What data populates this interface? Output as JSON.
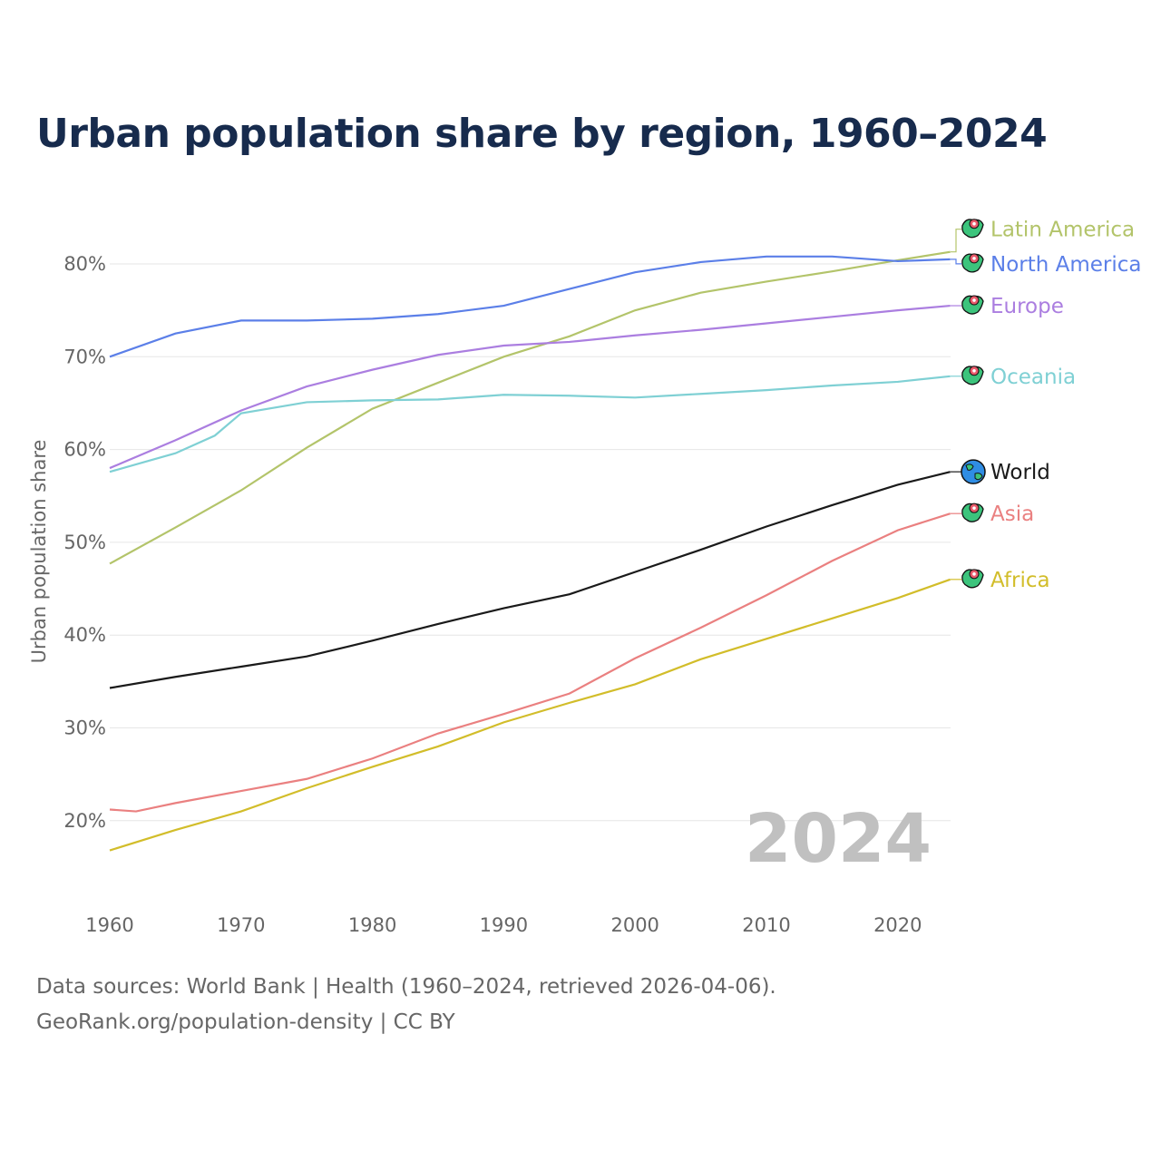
{
  "title": "Urban population share by region, 1960–2024",
  "source_line1": "Data sources: World Bank | Health (1960–2024, retrieved 2026-04-06).",
  "source_line2": "GeoRank.org/population-density | CC BY",
  "chart_data": {
    "type": "line",
    "title": "Urban population share by region, 1960–2024",
    "xlabel": "",
    "ylabel": "Urban population share",
    "xlim": [
      1960,
      2024
    ],
    "ylim": [
      14,
      86
    ],
    "xticks": [
      1960,
      1970,
      1980,
      1990,
      2000,
      2010,
      2020
    ],
    "yticks": [
      20,
      30,
      40,
      50,
      60,
      70,
      80
    ],
    "ytick_labels": [
      "20%",
      "30%",
      "40%",
      "50%",
      "60%",
      "70%",
      "80%"
    ],
    "year_watermark": "2024",
    "grid": true,
    "legend": "right-end labels",
    "series": [
      {
        "name": "Latin America",
        "color": "#b3c46a",
        "icon": "latin-america-map-icon",
        "x": [
          1960,
          1965,
          1970,
          1975,
          1980,
          1985,
          1990,
          1995,
          2000,
          2005,
          2010,
          2015,
          2020,
          2024
        ],
        "values": [
          47.7,
          51.6,
          55.6,
          60.2,
          64.4,
          67.2,
          70.0,
          72.2,
          75.0,
          76.9,
          78.1,
          79.2,
          80.4,
          81.3
        ]
      },
      {
        "name": "North America",
        "color": "#5b7fe8",
        "icon": "north-america-map-icon",
        "x": [
          1960,
          1965,
          1970,
          1975,
          1980,
          1985,
          1990,
          1995,
          2000,
          2005,
          2010,
          2015,
          2020,
          2024
        ],
        "values": [
          70.0,
          72.5,
          73.9,
          73.9,
          74.1,
          74.6,
          75.5,
          77.3,
          79.1,
          80.2,
          80.8,
          80.8,
          80.3,
          80.5
        ]
      },
      {
        "name": "Europe",
        "color": "#ab7ee0",
        "icon": "europe-map-icon",
        "x": [
          1960,
          1965,
          1970,
          1975,
          1980,
          1985,
          1990,
          1995,
          2000,
          2005,
          2010,
          2015,
          2020,
          2024
        ],
        "values": [
          58.0,
          61.0,
          64.2,
          66.8,
          68.6,
          70.2,
          71.2,
          71.6,
          72.3,
          72.9,
          73.6,
          74.3,
          75.0,
          75.5
        ]
      },
      {
        "name": "Oceania",
        "color": "#7fd0d4",
        "icon": "oceania-map-icon",
        "x": [
          1960,
          1965,
          1968,
          1970,
          1975,
          1980,
          1985,
          1990,
          1995,
          2000,
          2005,
          2010,
          2015,
          2020,
          2024
        ],
        "values": [
          57.6,
          59.6,
          61.5,
          63.9,
          65.1,
          65.3,
          65.4,
          65.9,
          65.8,
          65.6,
          66.0,
          66.4,
          66.9,
          67.3,
          67.9
        ]
      },
      {
        "name": "World",
        "color": "#1a1a1a",
        "icon": "globe-icon",
        "x": [
          1960,
          1965,
          1970,
          1975,
          1980,
          1985,
          1990,
          1995,
          2000,
          2005,
          2010,
          2015,
          2020,
          2024
        ],
        "values": [
          34.3,
          35.5,
          36.6,
          37.7,
          39.4,
          41.2,
          42.9,
          44.4,
          46.8,
          49.2,
          51.7,
          54.0,
          56.2,
          57.6
        ]
      },
      {
        "name": "Asia",
        "color": "#ea8080",
        "icon": "asia-map-icon",
        "x": [
          1960,
          1962,
          1965,
          1970,
          1975,
          1980,
          1985,
          1990,
          1995,
          2000,
          2005,
          2010,
          2015,
          2020,
          2024
        ],
        "values": [
          21.2,
          21.0,
          21.9,
          23.2,
          24.5,
          26.7,
          29.4,
          31.5,
          33.7,
          37.5,
          40.8,
          44.3,
          48.0,
          51.3,
          53.1
        ]
      },
      {
        "name": "Africa",
        "color": "#d2bd2a",
        "icon": "africa-map-icon",
        "x": [
          1960,
          1965,
          1970,
          1975,
          1980,
          1985,
          1990,
          1995,
          2000,
          2005,
          2010,
          2015,
          2020,
          2024
        ],
        "values": [
          16.8,
          19.0,
          21.0,
          23.5,
          25.8,
          28.0,
          30.6,
          32.7,
          34.7,
          37.4,
          39.6,
          41.8,
          44.0,
          46.0
        ]
      }
    ]
  }
}
